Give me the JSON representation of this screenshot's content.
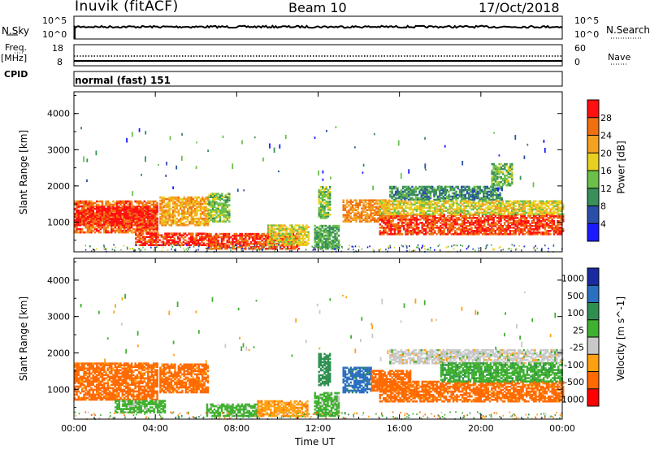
{
  "header": {
    "site": "Inuvik (fitACF)",
    "beam": "Beam 10",
    "date": "17/Oct/2018"
  },
  "left_labels": {
    "nsky": "N.Sky",
    "freq": "Freq.",
    "freq_unit": "[MHz]",
    "cpid": "CPID"
  },
  "right_labels": {
    "nsearch": "N.Search",
    "nave": "Nave"
  },
  "cpid_text": "normal (fast) 151",
  "noise_panel": {
    "tick_top": "10^5",
    "tick_bottom": "10^0",
    "right_tick_top": "10^5",
    "right_tick_bottom": "10^0"
  },
  "freq_panel": {
    "tick_top": "18",
    "tick_bottom": "8",
    "right_tick_top": "60",
    "right_tick_bottom": "0"
  },
  "colors": {
    "power": [
      "#1a1aff",
      "#2a4fa8",
      "#3a8f5a",
      "#6cc04a",
      "#e8d020",
      "#f5a020",
      "#f07010",
      "#ff1010"
    ],
    "velocity": [
      "#ff0000",
      "#ff6a00",
      "#ffa010",
      "#c8c8c8",
      "#40b030",
      "#2f8f50",
      "#2a6fc0",
      "#1a2aa0"
    ]
  },
  "chart_data": [
    {
      "type": "heatmap",
      "name": "power",
      "ylabel": "Slant Range [km]",
      "xlabel": "",
      "ylim": [
        180,
        4600
      ],
      "yticks": [
        "1000",
        "2000",
        "3000",
        "4000"
      ],
      "xticks": [
        "00:00",
        "04:00",
        "08:00",
        "12:00",
        "16:00",
        "20:00",
        "00:00"
      ],
      "colorbar_label": "Power [dB]",
      "colorbar_ticks": [
        "4",
        "8",
        "12",
        "16",
        "20",
        "24",
        "28"
      ],
      "colorbar_range": [
        0,
        32
      ],
      "bands": [
        {
          "t": [
            0,
            4.1
          ],
          "r": [
            700,
            1600
          ],
          "v": 26
        },
        {
          "t": [
            0,
            4.1
          ],
          "r": [
            900,
            1400
          ],
          "v": 30
        },
        {
          "t": [
            3,
            6.5
          ],
          "r": [
            350,
            700
          ],
          "v": 29
        },
        {
          "t": [
            4.2,
            6.6
          ],
          "r": [
            900,
            1700
          ],
          "v": 22
        },
        {
          "t": [
            6.5,
            11
          ],
          "r": [
            250,
            700
          ],
          "v": 28
        },
        {
          "t": [
            6.6,
            7.6
          ],
          "r": [
            1000,
            1800
          ],
          "v": 14
        },
        {
          "t": [
            9.5,
            11.5
          ],
          "r": [
            350,
            900
          ],
          "v": 18
        },
        {
          "t": [
            11.8,
            13
          ],
          "r": [
            250,
            900
          ],
          "v": 12
        },
        {
          "t": [
            12,
            12.6
          ],
          "r": [
            1100,
            2000
          ],
          "v": 14
        },
        {
          "t": [
            13.2,
            15.5
          ],
          "r": [
            1000,
            1600
          ],
          "v": 24
        },
        {
          "t": [
            15.5,
            21
          ],
          "r": [
            1600,
            2000
          ],
          "v": 10
        },
        {
          "t": [
            15,
            24
          ],
          "r": [
            650,
            1200
          ],
          "v": 28
        },
        {
          "t": [
            15,
            24
          ],
          "r": [
            1200,
            1600
          ],
          "v": 18
        },
        {
          "t": [
            20.5,
            21.5
          ],
          "r": [
            2000,
            2600
          ],
          "v": 14
        }
      ]
    },
    {
      "type": "heatmap",
      "name": "velocity",
      "ylabel": "Slant Range [km]",
      "xlabel": "Time UT",
      "ylim": [
        180,
        4600
      ],
      "yticks": [
        "1000",
        "2000",
        "3000",
        "4000"
      ],
      "xticks": [
        "00:00",
        "04:00",
        "08:00",
        "12:00",
        "16:00",
        "20:00",
        "00:00"
      ],
      "colorbar_label": "Velocity [m s^-1]",
      "colorbar_ticks": [
        "1000",
        "500",
        "100",
        "25",
        "-25",
        "-100",
        "-500",
        "-1000"
      ],
      "bands": [
        {
          "t": [
            0,
            4.1
          ],
          "r": [
            700,
            1700
          ],
          "v": -150
        },
        {
          "t": [
            2,
            4.5
          ],
          "r": [
            350,
            700
          ],
          "v": 50
        },
        {
          "t": [
            4.2,
            6.6
          ],
          "r": [
            900,
            1700
          ],
          "v": -150
        },
        {
          "t": [
            6.5,
            9
          ],
          "r": [
            250,
            600
          ],
          "v": 50
        },
        {
          "t": [
            9,
            11.5
          ],
          "r": [
            250,
            700
          ],
          "v": -80
        },
        {
          "t": [
            11.8,
            13
          ],
          "r": [
            250,
            900
          ],
          "v": 50
        },
        {
          "t": [
            12,
            12.6
          ],
          "r": [
            1100,
            2000
          ],
          "v": 200
        },
        {
          "t": [
            13.2,
            14.6
          ],
          "r": [
            900,
            1600
          ],
          "v": 700
        },
        {
          "t": [
            14.6,
            16.5
          ],
          "r": [
            950,
            1500
          ],
          "v": -300
        },
        {
          "t": [
            15.5,
            24
          ],
          "r": [
            1700,
            2100
          ],
          "v": 0
        },
        {
          "t": [
            15,
            24
          ],
          "r": [
            650,
            1200
          ],
          "v": -150
        },
        {
          "t": [
            18,
            24
          ],
          "r": [
            1200,
            1700
          ],
          "v": 80
        }
      ]
    }
  ]
}
